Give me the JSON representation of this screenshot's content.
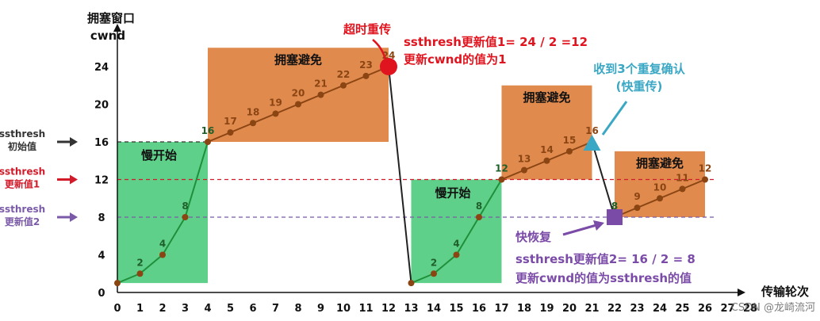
{
  "chart_data": {
    "type": "line",
    "xlabel": "传输轮次",
    "ylabel_line1": "拥塞窗口",
    "ylabel_line2": "cwnd",
    "x_ticks": [
      0,
      1,
      2,
      3,
      4,
      5,
      6,
      7,
      8,
      9,
      10,
      11,
      12,
      13,
      14,
      15,
      16,
      17,
      18,
      19,
      20,
      21,
      22,
      23,
      24,
      25,
      26,
      27,
      28
    ],
    "y_ticks": [
      0,
      4,
      8,
      12,
      16,
      20,
      24
    ],
    "xlim": [
      0,
      28
    ],
    "ylim": [
      0,
      24
    ],
    "series": [
      {
        "name": "",
        "x": [
          0,
          1,
          2,
          3,
          4,
          5,
          6,
          7,
          8,
          9,
          10,
          11,
          12,
          13,
          14,
          15,
          16,
          17,
          18,
          19,
          20,
          21,
          22,
          23,
          24,
          25,
          26
        ],
        "values": [
          1,
          2,
          4,
          8,
          16,
          17,
          18,
          19,
          20,
          21,
          22,
          23,
          24,
          1,
          2,
          4,
          8,
          12,
          13,
          14,
          15,
          16,
          8,
          9,
          10,
          11,
          12
        ],
        "point_labels": [
          "",
          "2",
          "4",
          "8",
          "16",
          "17",
          "18",
          "19",
          "20",
          "21",
          "22",
          "23",
          "24",
          "",
          "2",
          "4",
          "8",
          "12",
          "13",
          "14",
          "15",
          "16",
          "8",
          "9",
          "10",
          "11",
          "12"
        ]
      }
    ],
    "regions": [
      {
        "label": "慢开始",
        "x": [
          0,
          4
        ],
        "y": [
          1,
          16
        ],
        "color": "#5fd08a"
      },
      {
        "label": "拥塞避免",
        "x": [
          4,
          12
        ],
        "y": [
          16,
          26
        ],
        "color": "#e08a4e"
      },
      {
        "label": "慢开始",
        "x": [
          13,
          17
        ],
        "y": [
          1,
          12
        ],
        "color": "#5fd08a"
      },
      {
        "label": "拥塞避免",
        "x": [
          17,
          21
        ],
        "y": [
          12,
          22
        ],
        "color": "#e08a4e"
      },
      {
        "label": "拥塞避免",
        "x": [
          22,
          26
        ],
        "y": [
          8,
          15
        ],
        "color": "#e08a4e"
      }
    ],
    "thresholds": [
      {
        "y": 16,
        "text1": "ssthresh",
        "text2": "初始值",
        "color": "#333333"
      },
      {
        "y": 12,
        "text1": "ssthresh",
        "text2": "更新值1",
        "color": "#d11b2a"
      },
      {
        "y": 8,
        "text1": "ssthresh",
        "text2": "更新值2",
        "color": "#7b5ba8"
      }
    ],
    "events": {
      "timeout": {
        "label": "超时重传",
        "note1": "ssthresh更新值1= 24 / 2 =12",
        "note2": "更新cwnd的值为1",
        "color": "#e0141e"
      },
      "three_dup": {
        "label1": "收到3个重复确认",
        "label2": "(快重传)",
        "color": "#3aa7c4"
      },
      "fast_recovery": {
        "label": "快恢复",
        "note1": "ssthresh更新值2= 16 / 2 = 8",
        "note2": "更新cwnd的值为ssthresh的值",
        "color": "#7b4ba8"
      }
    },
    "colors": {
      "line": "#8b4513",
      "fast_start_line": "#1f8f3a",
      "point": "#8b4513",
      "green_region": "#5fd08a",
      "orange_region": "#e08a4e"
    }
  },
  "watermark": "CSDN @龙崎流河"
}
